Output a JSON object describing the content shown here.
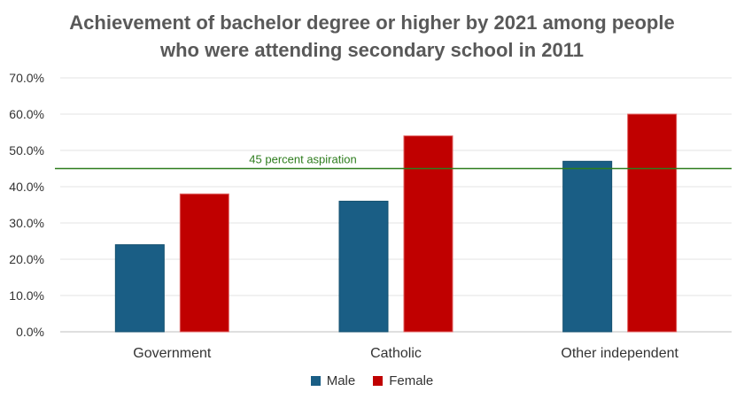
{
  "chart_data": {
    "type": "bar",
    "title_lines": [
      "Achievement of bachelor degree or higher by 2021 among people",
      "who were attending secondary school in 2011"
    ],
    "categories": [
      "Government",
      "Catholic",
      "Other independent"
    ],
    "series": [
      {
        "name": "Male",
        "values": [
          24.0,
          36.0,
          47.0
        ],
        "color": "#1a5e85"
      },
      {
        "name": "Female",
        "values": [
          38.0,
          54.0,
          60.0
        ],
        "color": "#c00000"
      }
    ],
    "ylim": [
      0,
      70
    ],
    "ytick_step": 10,
    "ytick_labels": [
      "0.0%",
      "10.0%",
      "20.0%",
      "30.0%",
      "40.0%",
      "50.0%",
      "60.0%",
      "70.0%"
    ],
    "reference_line": {
      "value": 45,
      "label": "45 percent aspiration",
      "color": "#2e7d1e"
    },
    "grid": true,
    "legend_position": "bottom"
  }
}
